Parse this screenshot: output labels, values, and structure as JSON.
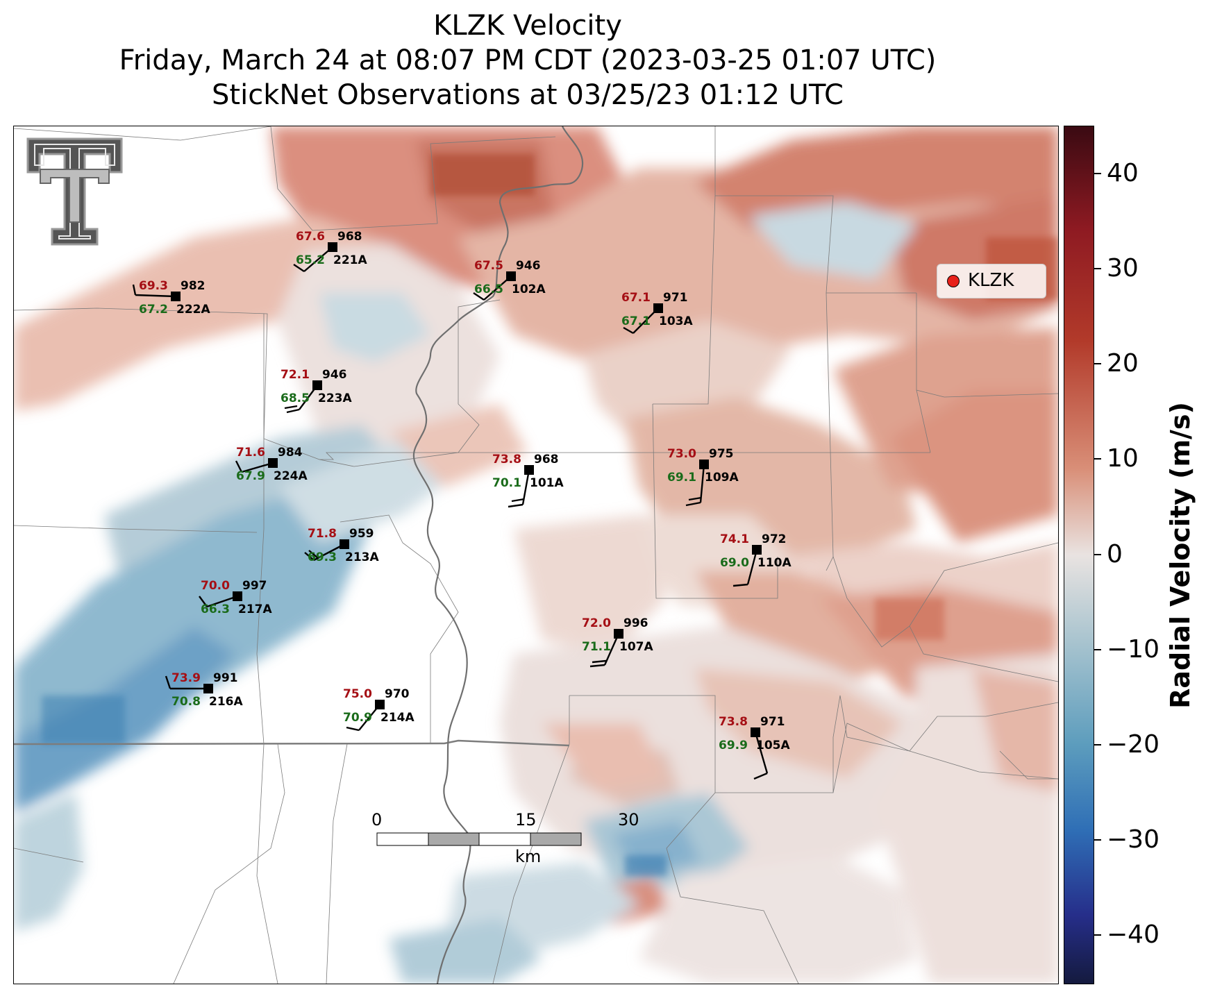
{
  "title": {
    "line1": "KLZK Velocity",
    "line2": "Friday, March 24 at 08:07 PM CDT (2023-03-25 01:07 UTC)",
    "line3": "StickNet Observations at 03/25/23 01:12 UTC"
  },
  "legend": {
    "label": "KLZK",
    "marker_color": "#e8201a"
  },
  "colorbar": {
    "label": "Radial Velocity (m/s)",
    "ticks": [
      "40",
      "30",
      "20",
      "10",
      "0",
      "−10",
      "−20",
      "−30",
      "−40"
    ],
    "range": [
      -45,
      45
    ],
    "colors": {
      "positive": "#b23a2a",
      "zero": "#e9e3e1",
      "negative": "#2f6fb6"
    }
  },
  "scale_bar": {
    "labels": [
      "0",
      "15",
      "30"
    ],
    "unit": "km"
  },
  "logo": "texas-tech-double-t-logo",
  "stations": [
    {
      "id": "221A",
      "temp": "67.6",
      "dew": "65.2",
      "press": "968"
    },
    {
      "id": "222A",
      "temp": "69.3",
      "dew": "67.2",
      "press": "982"
    },
    {
      "id": "102A",
      "temp": "67.5",
      "dew": "66.5",
      "press": "946"
    },
    {
      "id": "103A",
      "temp": "67.1",
      "dew": "67.1",
      "press": "971"
    },
    {
      "id": "223A",
      "temp": "72.1",
      "dew": "68.5",
      "press": "946"
    },
    {
      "id": "224A",
      "temp": "71.6",
      "dew": "67.9",
      "press": "984"
    },
    {
      "id": "101A",
      "temp": "73.8",
      "dew": "70.1",
      "press": "968"
    },
    {
      "id": "109A",
      "temp": "73.0",
      "dew": "69.1",
      "press": "975"
    },
    {
      "id": "213A",
      "temp": "71.8",
      "dew": "69.3",
      "press": "959"
    },
    {
      "id": "110A",
      "temp": "74.1",
      "dew": "69.0",
      "press": "972"
    },
    {
      "id": "217A",
      "temp": "70.0",
      "dew": "66.3",
      "press": "997"
    },
    {
      "id": "107A",
      "temp": "72.0",
      "dew": "71.1",
      "press": "996"
    },
    {
      "id": "216A",
      "temp": "73.9",
      "dew": "70.8",
      "press": "991"
    },
    {
      "id": "214A",
      "temp": "75.0",
      "dew": "70.9",
      "press": "970"
    },
    {
      "id": "105A",
      "temp": "73.8",
      "dew": "69.9",
      "press": "971"
    }
  ]
}
